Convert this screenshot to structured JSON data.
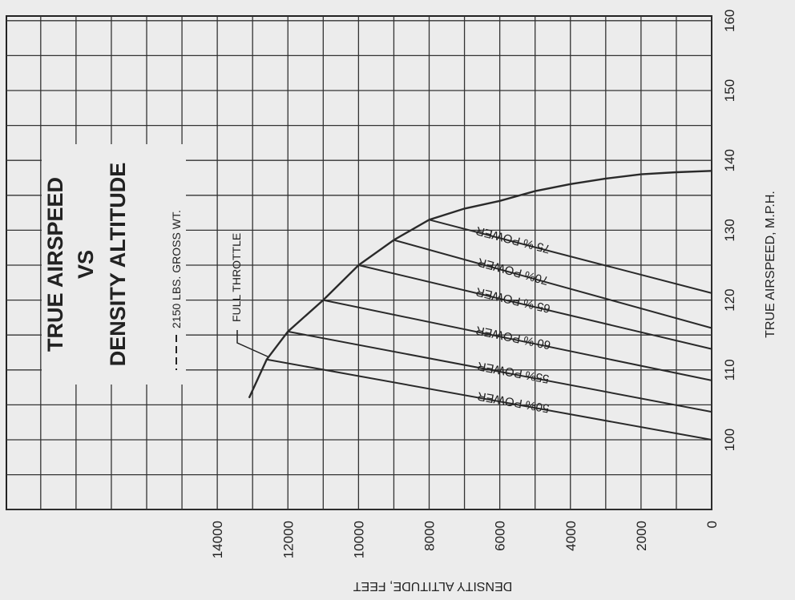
{
  "chart_data": {
    "type": "line",
    "title": [
      "TRUE AIRSPEED",
      "VS",
      "DENSITY ALTITUDE"
    ],
    "subtitle": "2150 LBS. GROSS WT.",
    "xlabel": "TRUE AIRSPEED, M.P.H.",
    "ylabel": "DENSITY ALTITUDE, FEET",
    "xlim": [
      80,
      160
    ],
    "ylim": [
      0,
      14000
    ],
    "x_ticks": [
      "100",
      "110",
      "120",
      "130",
      "140",
      "150",
      "160"
    ],
    "y_ticks": [
      "0",
      "2000",
      "4000",
      "6000",
      "8000",
      "10000",
      "12000",
      "14000"
    ],
    "grid": true,
    "full_throttle": {
      "name": "FULL THROTTLE",
      "points": [
        [
          138.5,
          0
        ],
        [
          138.3,
          1000
        ],
        [
          138.0,
          2000
        ],
        [
          137.4,
          3000
        ],
        [
          136.6,
          4000
        ],
        [
          135.6,
          5000
        ],
        [
          134.2,
          6000
        ],
        [
          133.1,
          7000
        ],
        [
          131.5,
          8000
        ],
        [
          128.6,
          9000
        ],
        [
          125.0,
          10000
        ],
        [
          120.0,
          11000
        ],
        [
          115.5,
          12000
        ],
        [
          111.5,
          12600
        ],
        [
          106.0,
          13100
        ]
      ]
    },
    "series": [
      {
        "name": "50% POWER",
        "points": [
          [
            100,
            0
          ],
          [
            111.5,
            12600
          ]
        ]
      },
      {
        "name": "55% POWER",
        "points": [
          [
            104,
            0
          ],
          [
            115.5,
            12000
          ]
        ]
      },
      {
        "name": "60 % POWER",
        "points": [
          [
            108.5,
            0
          ],
          [
            120,
            11000
          ]
        ]
      },
      {
        "name": "65 % POWER",
        "points": [
          [
            113,
            0
          ],
          [
            125,
            10000
          ]
        ]
      },
      {
        "name": "70% POWER",
        "points": [
          [
            116,
            0
          ],
          [
            128.6,
            9000
          ]
        ]
      },
      {
        "name": "75 % POWER",
        "points": [
          [
            121,
            0
          ],
          [
            131.5,
            8000
          ]
        ]
      }
    ]
  }
}
